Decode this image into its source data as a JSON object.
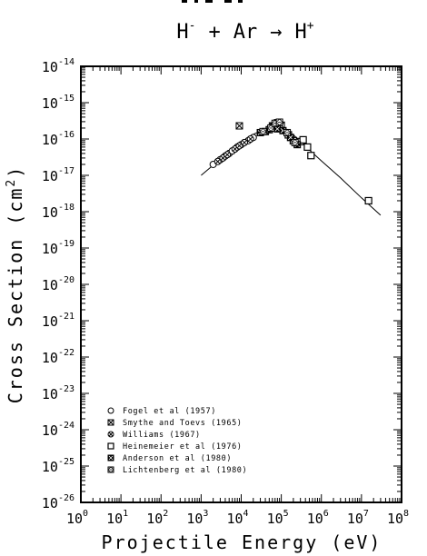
{
  "chart_data": {
    "type": "scatter",
    "title_fragment": "",
    "title": "H⁻ + Ar → H⁺",
    "title_parts": {
      "ion": "H",
      "ion_charge": "-",
      "plus": "+",
      "target": "Ar",
      "arrow": "→",
      "product": "H",
      "product_charge": "+"
    },
    "xlabel": "Projectile Energy (eV)",
    "ylabel_prefix": "Cross Section (cm",
    "ylabel_sup": "2",
    "ylabel_suffix": ")",
    "x_scale": "log",
    "y_scale": "log",
    "xlim": [
      1,
      100000000
    ],
    "ylim": [
      1e-26,
      1e-14
    ],
    "x_ticks": [
      {
        "value": 1,
        "base": "10",
        "exp": "0"
      },
      {
        "value": 10,
        "base": "10",
        "exp": "1"
      },
      {
        "value": 100,
        "base": "10",
        "exp": "2"
      },
      {
        "value": 1000,
        "base": "10",
        "exp": "3"
      },
      {
        "value": 10000,
        "base": "10",
        "exp": "4"
      },
      {
        "value": 100000,
        "base": "10",
        "exp": "5"
      },
      {
        "value": 1000000,
        "base": "10",
        "exp": "6"
      },
      {
        "value": 10000000,
        "base": "10",
        "exp": "7"
      },
      {
        "value": 100000000,
        "base": "10",
        "exp": "8"
      }
    ],
    "y_ticks": [
      {
        "value": 1e-14,
        "base": "10",
        "exp": "-14"
      },
      {
        "value": 1e-15,
        "base": "10",
        "exp": "-15"
      },
      {
        "value": 1e-16,
        "base": "10",
        "exp": "-16"
      },
      {
        "value": 1e-17,
        "base": "10",
        "exp": "-17"
      },
      {
        "value": 1e-18,
        "base": "10",
        "exp": "-18"
      },
      {
        "value": 1e-19,
        "base": "10",
        "exp": "-19"
      },
      {
        "value": 1e-20,
        "base": "10",
        "exp": "-20"
      },
      {
        "value": 1e-21,
        "base": "10",
        "exp": "-21"
      },
      {
        "value": 1e-22,
        "base": "10",
        "exp": "-22"
      },
      {
        "value": 1e-23,
        "base": "10",
        "exp": "-23"
      },
      {
        "value": 1e-24,
        "base": "10",
        "exp": "-24"
      },
      {
        "value": 1e-25,
        "base": "10",
        "exp": "-25"
      },
      {
        "value": 1e-26,
        "base": "10",
        "exp": "-26"
      }
    ],
    "grid": false,
    "legend_placement": "bottom-left",
    "fit_curve": {
      "x": [
        1000,
        2000,
        5000,
        10000,
        20000,
        50000,
        70000,
        100000,
        200000,
        500000,
        1000000,
        3000000,
        10000000,
        30000000
      ],
      "y": [
        1e-17,
        1.9e-17,
        4.5e-17,
        8e-17,
        1.35e-16,
        2.1e-16,
        2.2e-16,
        2e-16,
        1.3e-16,
        5e-17,
        2.5e-17,
        8.5e-18,
        2.4e-18,
        8e-19
      ]
    },
    "series": [
      {
        "name": "Fogel et al (1957)",
        "marker": "open-circle",
        "points": [
          [
            2000,
            2e-17
          ],
          [
            3000,
            2.7e-17
          ],
          [
            4000,
            3.4e-17
          ],
          [
            5000,
            4e-17
          ],
          [
            6000,
            4.7e-17
          ],
          [
            8000,
            6e-17
          ],
          [
            10000,
            7e-17
          ],
          [
            15000,
            9e-17
          ],
          [
            20000,
            1.1e-16
          ]
        ]
      },
      {
        "name": "Smythe and Toevs (1965)",
        "marker": "square-x",
        "points": [
          [
            9000,
            2.3e-16
          ],
          [
            40000,
            1.6e-16
          ],
          [
            60000,
            2.3e-16
          ],
          [
            80000,
            2.8e-16
          ],
          [
            100000,
            2.4e-16
          ]
        ]
      },
      {
        "name": "Williams (1967)",
        "marker": "circle-cross",
        "points": [
          [
            2600,
            2.4e-17
          ],
          [
            3500,
            3e-17
          ],
          [
            4500,
            3.7e-17
          ],
          [
            7000,
            5.3e-17
          ],
          [
            9000,
            6.5e-17
          ],
          [
            12000,
            8e-17
          ],
          [
            17000,
            1e-16
          ]
        ]
      },
      {
        "name": "Heinemeier et al (1976)",
        "marker": "open-square",
        "points": [
          [
            150000,
            1.3e-16
          ],
          [
            200000,
            9e-17
          ],
          [
            300000,
            8.5e-17
          ],
          [
            350000,
            9.5e-17
          ],
          [
            450000,
            6e-17
          ],
          [
            550000,
            3.5e-17
          ],
          [
            15000000,
            2e-18
          ]
        ]
      },
      {
        "name": "Anderson et al (1980)",
        "marker": "filled-square-x",
        "points": [
          [
            30000,
            1.5e-16
          ],
          [
            50000,
            1.8e-16
          ],
          [
            65000,
            2.2e-16
          ],
          [
            80000,
            1.9e-16
          ],
          [
            110000,
            1.7e-16
          ],
          [
            170000,
            1.1e-16
          ],
          [
            250000,
            7e-17
          ]
        ]
      },
      {
        "name": "Lichtenberg et al (1980)",
        "marker": "diamond-square",
        "points": [
          [
            35000,
            1.6e-16
          ],
          [
            55000,
            2e-16
          ],
          [
            70000,
            2.7e-16
          ],
          [
            90000,
            2.9e-16
          ],
          [
            140000,
            1.5e-16
          ],
          [
            220000,
            8e-17
          ]
        ]
      }
    ]
  }
}
